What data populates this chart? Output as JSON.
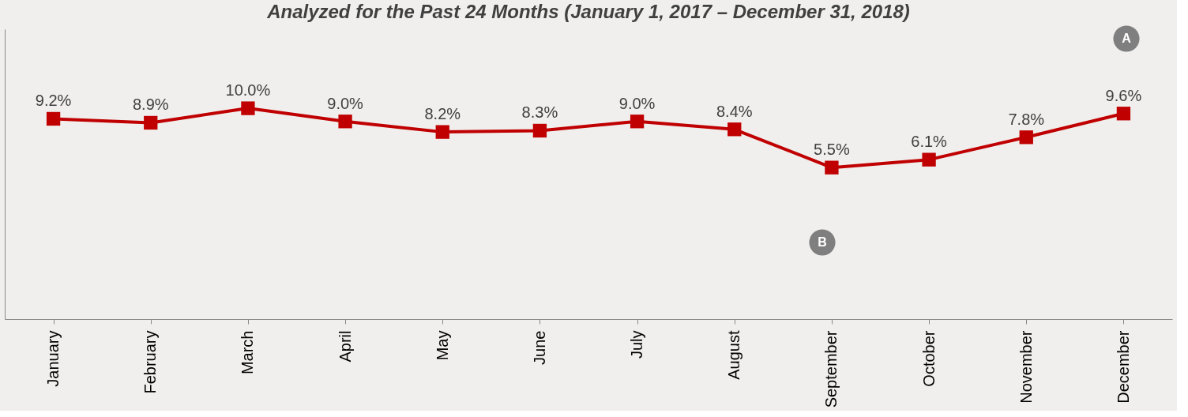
{
  "chart_data": {
    "type": "line",
    "title": "Analyzed for the Past 24 Months (January 1, 2017 – December 31, 2018)",
    "categories": [
      "January",
      "February",
      "March",
      "April",
      "May",
      "June",
      "July",
      "August",
      "September",
      "October",
      "November",
      "December"
    ],
    "series": [
      {
        "color": "#c00000",
        "values": [
          9.2,
          8.9,
          10.0,
          9.0,
          8.2,
          8.3,
          9.0,
          8.4,
          5.5,
          6.1,
          7.8,
          9.6
        ],
        "value_labels": [
          "9.2%",
          "8.9%",
          "10.0%",
          "9.0%",
          "8.2%",
          "8.3%",
          "9.0%",
          "8.4%",
          "5.5%",
          "6.1%",
          "7.8%",
          "9.6%"
        ]
      }
    ],
    "tick_labels": "x",
    "grid": false,
    "marker": "square",
    "line_style": "solid",
    "annotations": [
      "A",
      "B"
    ]
  }
}
